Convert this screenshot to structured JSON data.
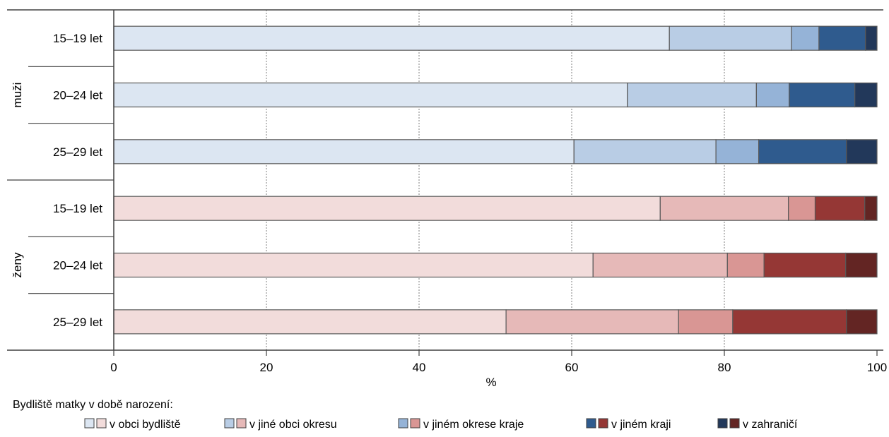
{
  "chart_data": {
    "type": "bar",
    "orientation": "horizontal",
    "stacked": true,
    "xlabel": "%",
    "xlim": [
      0,
      100
    ],
    "x_ticks": [
      0,
      20,
      40,
      60,
      80,
      100
    ],
    "grid": "vertical dotted",
    "groups": [
      {
        "name": "muži",
        "categories": [
          "15–19 let",
          "20–24 let",
          "25–29 let"
        ],
        "series": [
          {
            "name": "v obci bydliště",
            "values": [
              72.8,
              67.3,
              60.3
            ],
            "color": "#dce6f2"
          },
          {
            "name": "v jiné obci okresu",
            "values": [
              16.0,
              16.9,
              18.6
            ],
            "color": "#b9cde5"
          },
          {
            "name": "v jiném okrese kraje",
            "values": [
              3.6,
              4.3,
              5.6
            ],
            "color": "#95b3d7"
          },
          {
            "name": "v jiném kraji",
            "values": [
              6.1,
              8.6,
              11.5
            ],
            "color": "#2f5b8e"
          },
          {
            "name": "v zahraničí",
            "values": [
              1.5,
              2.9,
              4.0
            ],
            "color": "#22385a"
          }
        ]
      },
      {
        "name": "ženy",
        "categories": [
          "15–19 let",
          "20–24 let",
          "25–29 let"
        ],
        "series": [
          {
            "name": "v obci bydliště",
            "values": [
              71.6,
              62.8,
              51.4
            ],
            "color": "#f2dcdb"
          },
          {
            "name": "v jiné obci okresu",
            "values": [
              16.8,
              17.6,
              22.6
            ],
            "color": "#e6b9b8"
          },
          {
            "name": "v jiném okrese kraje",
            "values": [
              3.5,
              4.8,
              7.1
            ],
            "color": "#d99694"
          },
          {
            "name": "v jiném kraji",
            "values": [
              6.5,
              10.7,
              14.9
            ],
            "color": "#953735"
          },
          {
            "name": "v zahraničí",
            "values": [
              1.6,
              4.1,
              4.0
            ],
            "color": "#632523"
          }
        ]
      }
    ],
    "legend": {
      "title": "Bydliště matky v době narození:",
      "placement": "bottom",
      "entries": [
        "v obci bydliště",
        "v jiné obci okresu",
        "v jiném okrese kraje",
        "v jiném kraji",
        "v zahraničí"
      ]
    }
  }
}
